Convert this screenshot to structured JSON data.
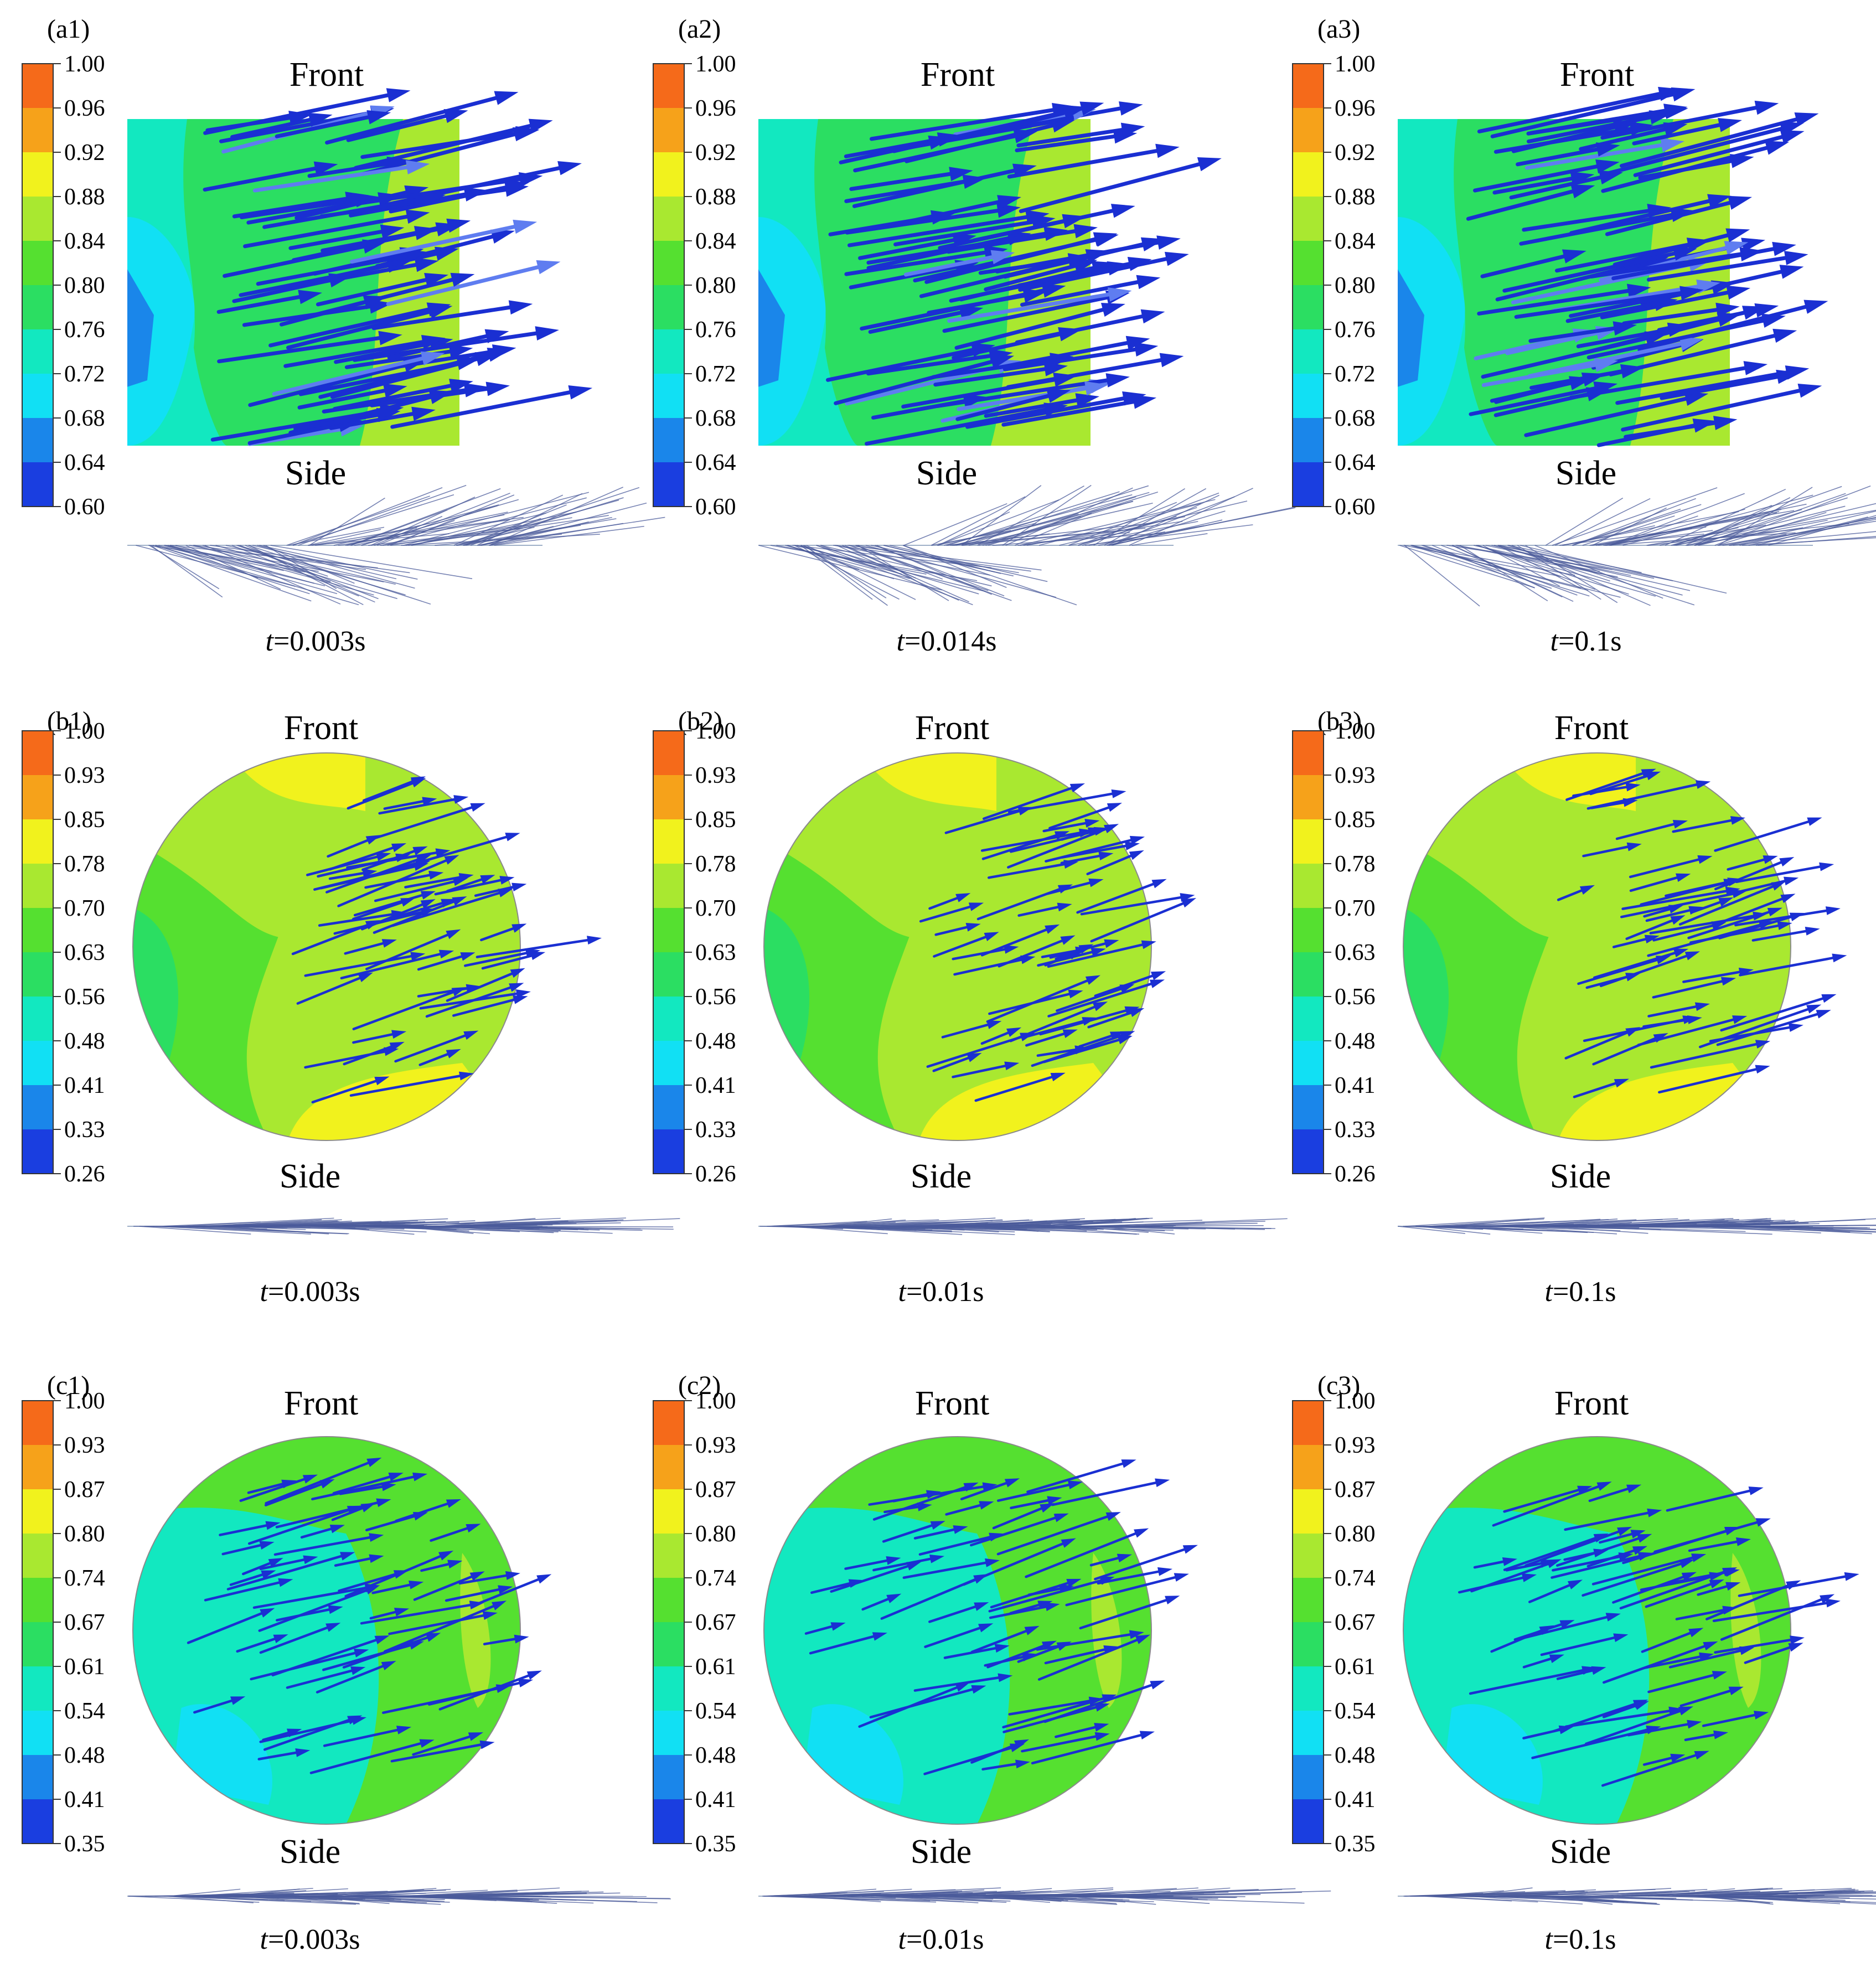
{
  "colormap": [
    "#1a3ee0",
    "#1a86ea",
    "#11e0f4",
    "#12e8c0",
    "#2bde62",
    "#55e030",
    "#a9e830",
    "#f1f21d",
    "#f6a21a",
    "#f56a1a"
  ],
  "colors": {
    "arrow": "#1a2fd2",
    "arrow_light": "#5f7df0",
    "side_line": "#4a5a9a",
    "outline": "#555555"
  },
  "panels": [
    {
      "id": "a1",
      "label": "(a1)",
      "shape": "rect",
      "front": "Front",
      "side": "Side",
      "time": "t=0.003s",
      "time_var": "t",
      "time_val": "=0.003s",
      "ticks": [
        "1.00",
        "0.96",
        "0.92",
        "0.88",
        "0.84",
        "0.80",
        "0.76",
        "0.72",
        "0.68",
        "0.64",
        "0.60"
      ]
    },
    {
      "id": "a2",
      "label": "(a2)",
      "shape": "rect",
      "front": "Front",
      "side": "Side",
      "time": "t=0.014s",
      "time_var": "t",
      "time_val": "=0.014s",
      "ticks": [
        "1.00",
        "0.96",
        "0.92",
        "0.88",
        "0.84",
        "0.80",
        "0.76",
        "0.72",
        "0.68",
        "0.64",
        "0.60"
      ]
    },
    {
      "id": "a3",
      "label": "(a3)",
      "shape": "rect",
      "front": "Front",
      "side": "Side",
      "time": "t=0.1s",
      "time_var": "t",
      "time_val": "=0.1s",
      "ticks": [
        "1.00",
        "0.96",
        "0.92",
        "0.88",
        "0.84",
        "0.80",
        "0.76",
        "0.72",
        "0.68",
        "0.64",
        "0.60"
      ]
    },
    {
      "id": "b1",
      "label": "(b1)",
      "shape": "circle",
      "front": "Front",
      "side": "Side",
      "time": "t=0.003s",
      "time_var": "t",
      "time_val": "=0.003s",
      "ticks": [
        "1.00",
        "0.93",
        "0.85",
        "0.78",
        "0.70",
        "0.63",
        "0.56",
        "0.48",
        "0.41",
        "0.33",
        "0.26"
      ]
    },
    {
      "id": "b2",
      "label": "(b2)",
      "shape": "circle",
      "front": "Front",
      "side": "Side",
      "time": "t=0.01s",
      "time_var": "t",
      "time_val": "=0.01s",
      "ticks": [
        "1.00",
        "0.93",
        "0.85",
        "0.78",
        "0.70",
        "0.63",
        "0.56",
        "0.48",
        "0.41",
        "0.33",
        "0.26"
      ]
    },
    {
      "id": "b3",
      "label": "(b3)",
      "shape": "circle",
      "front": "Front",
      "side": "Side",
      "time": "t=0.1s",
      "time_var": "t",
      "time_val": "=0.1s",
      "ticks": [
        "1.00",
        "0.93",
        "0.85",
        "0.78",
        "0.70",
        "0.63",
        "0.56",
        "0.48",
        "0.41",
        "0.33",
        "0.26"
      ]
    },
    {
      "id": "c1",
      "label": "(c1)",
      "shape": "circle",
      "front": "Front",
      "side": "Side",
      "time": "t=0.003s",
      "time_var": "t",
      "time_val": "=0.003s",
      "ticks": [
        "1.00",
        "0.93",
        "0.87",
        "0.80",
        "0.74",
        "0.67",
        "0.61",
        "0.54",
        "0.48",
        "0.41",
        "0.35"
      ]
    },
    {
      "id": "c2",
      "label": "(c2)",
      "shape": "circle",
      "front": "Front",
      "side": "Side",
      "time": "t=0.01s",
      "time_var": "t",
      "time_val": "=0.01s",
      "ticks": [
        "1.00",
        "0.93",
        "0.87",
        "0.80",
        "0.74",
        "0.67",
        "0.61",
        "0.54",
        "0.48",
        "0.41",
        "0.35"
      ]
    },
    {
      "id": "c3",
      "label": "(c3)",
      "shape": "circle",
      "front": "Front",
      "side": "Side",
      "time": "t=0.1s",
      "time_var": "t",
      "time_val": "=0.1s",
      "ticks": [
        "1.00",
        "0.93",
        "0.87",
        "0.80",
        "0.74",
        "0.67",
        "0.61",
        "0.54",
        "0.48",
        "0.41",
        "0.35"
      ]
    }
  ]
}
